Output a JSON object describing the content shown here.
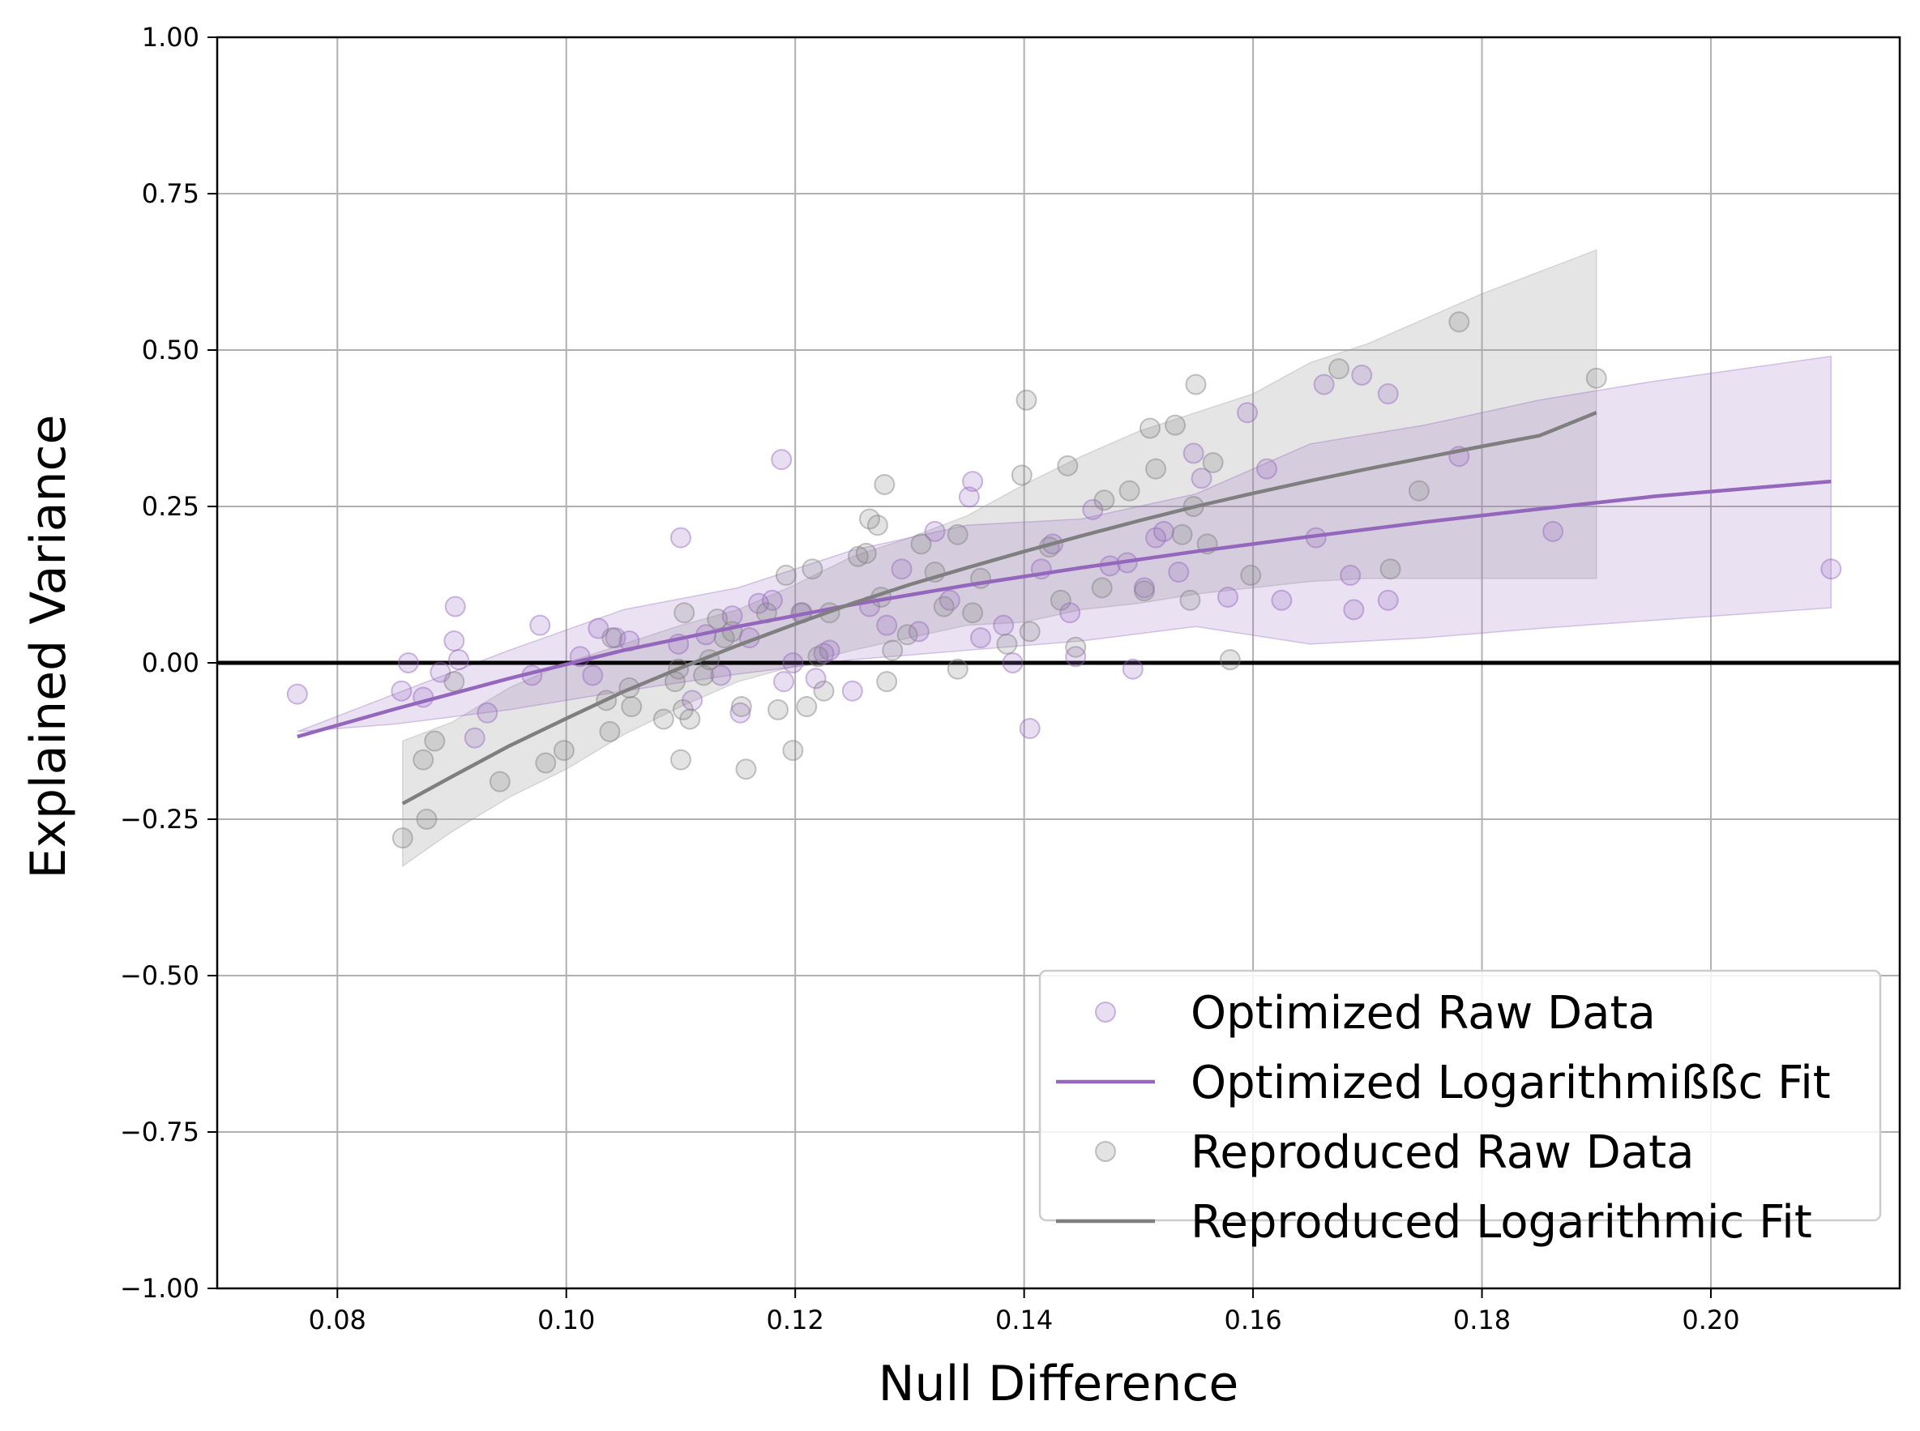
{
  "chart_data": {
    "type": "scatter",
    "title": "",
    "xlabel": "Null Difference",
    "ylabel": "Explained Variance",
    "xlim": [
      0.0695,
      0.2165
    ],
    "ylim": [
      -1.0,
      1.0
    ],
    "x_ticks": [
      0.08,
      0.1,
      0.12,
      0.14,
      0.16,
      0.18,
      0.2
    ],
    "x_tick_labels": [
      "0.08",
      "0.10",
      "0.12",
      "0.14",
      "0.16",
      "0.18",
      "0.20"
    ],
    "y_ticks": [
      -1.0,
      -0.75,
      -0.5,
      -0.25,
      0.0,
      0.25,
      0.5,
      0.75,
      1.0
    ],
    "y_tick_labels": [
      "−1.00",
      "−0.75",
      "−0.50",
      "−0.25",
      "0.00",
      "0.25",
      "0.50",
      "0.75",
      "1.00"
    ],
    "grid": true,
    "reference_line_y": 0.0,
    "legend_position": "lower right",
    "colors": {
      "optimized": "#9467bd",
      "reproduced": "#7f7f7f",
      "optimized_band": "#9467bd",
      "reproduced_band": "#a0a0a0",
      "grid": "#b0b0b0",
      "reference_line": "#000000"
    },
    "series": [
      {
        "name": "Optimized Raw Data",
        "kind": "scatter",
        "color": "#9467bd",
        "points": [
          [
            0.0765,
            -0.05
          ],
          [
            0.0856,
            -0.045
          ],
          [
            0.0862,
            0.0
          ],
          [
            0.0875,
            -0.055
          ],
          [
            0.089,
            -0.015
          ],
          [
            0.0903,
            0.09
          ],
          [
            0.0902,
            0.035
          ],
          [
            0.0906,
            0.005
          ],
          [
            0.092,
            -0.12
          ],
          [
            0.0931,
            -0.08
          ],
          [
            0.097,
            -0.02
          ],
          [
            0.0977,
            0.06
          ],
          [
            0.1012,
            0.01
          ],
          [
            0.1023,
            -0.02
          ],
          [
            0.1028,
            0.055
          ],
          [
            0.1043,
            0.04
          ],
          [
            0.1055,
            0.035
          ],
          [
            0.1098,
            0.03
          ],
          [
            0.11,
            0.2
          ],
          [
            0.111,
            -0.06
          ],
          [
            0.1122,
            0.045
          ],
          [
            0.1135,
            -0.02
          ],
          [
            0.1145,
            0.075
          ],
          [
            0.1152,
            -0.08
          ],
          [
            0.116,
            0.04
          ],
          [
            0.1168,
            0.095
          ],
          [
            0.118,
            0.1
          ],
          [
            0.1188,
            0.325
          ],
          [
            0.119,
            -0.03
          ],
          [
            0.1198,
            0.0
          ],
          [
            0.1206,
            0.08
          ],
          [
            0.1218,
            -0.025
          ],
          [
            0.1225,
            0.015
          ],
          [
            0.123,
            0.02
          ],
          [
            0.125,
            -0.045
          ],
          [
            0.1265,
            0.09
          ],
          [
            0.128,
            0.06
          ],
          [
            0.1293,
            0.15
          ],
          [
            0.1308,
            0.05
          ],
          [
            0.1322,
            0.21
          ],
          [
            0.1335,
            0.1
          ],
          [
            0.1352,
            0.265
          ],
          [
            0.1355,
            0.29
          ],
          [
            0.1362,
            0.04
          ],
          [
            0.1382,
            0.06
          ],
          [
            0.139,
            0.0
          ],
          [
            0.1405,
            -0.105
          ],
          [
            0.1415,
            0.15
          ],
          [
            0.1425,
            0.19
          ],
          [
            0.144,
            0.08
          ],
          [
            0.1445,
            0.01
          ],
          [
            0.146,
            0.245
          ],
          [
            0.1475,
            0.155
          ],
          [
            0.149,
            0.16
          ],
          [
            0.1495,
            -0.01
          ],
          [
            0.1505,
            0.12
          ],
          [
            0.1515,
            0.2
          ],
          [
            0.1522,
            0.21
          ],
          [
            0.1535,
            0.145
          ],
          [
            0.1548,
            0.335
          ],
          [
            0.1555,
            0.295
          ],
          [
            0.1578,
            0.105
          ],
          [
            0.1595,
            0.4
          ],
          [
            0.1612,
            0.31
          ],
          [
            0.1625,
            0.1
          ],
          [
            0.1655,
            0.2
          ],
          [
            0.1662,
            0.445
          ],
          [
            0.1685,
            0.14
          ],
          [
            0.1688,
            0.085
          ],
          [
            0.1695,
            0.46
          ],
          [
            0.1718,
            0.43
          ],
          [
            0.1718,
            0.1
          ],
          [
            0.178,
            0.33
          ],
          [
            0.1862,
            0.21
          ],
          [
            0.2105,
            0.15
          ]
        ]
      },
      {
        "name": "Optimized Logarithmißßc Fit",
        "kind": "line",
        "color": "#9467bd",
        "x": [
          0.0765,
          0.085,
          0.095,
          0.105,
          0.115,
          0.125,
          0.135,
          0.145,
          0.155,
          0.165,
          0.175,
          0.185,
          0.195,
          0.2105
        ],
        "y": [
          -0.118,
          -0.074,
          -0.025,
          0.02,
          0.058,
          0.093,
          0.124,
          0.152,
          0.178,
          0.202,
          0.225,
          0.246,
          0.266,
          0.29
        ],
        "band_lower": [
          -0.11,
          -0.098,
          -0.075,
          -0.045,
          -0.018,
          0.005,
          0.02,
          0.035,
          0.058,
          0.03,
          0.04,
          0.055,
          0.068,
          0.088
        ],
        "band_upper": [
          -0.11,
          -0.05,
          0.02,
          0.085,
          0.12,
          0.18,
          0.22,
          0.23,
          0.27,
          0.35,
          0.38,
          0.42,
          0.45,
          0.49
        ]
      },
      {
        "name": "Reproduced Raw Data",
        "kind": "scatter",
        "color": "#7f7f7f",
        "points": [
          [
            0.0857,
            -0.28
          ],
          [
            0.0875,
            -0.155
          ],
          [
            0.0878,
            -0.25
          ],
          [
            0.0885,
            -0.125
          ],
          [
            0.0902,
            -0.03
          ],
          [
            0.0942,
            -0.19
          ],
          [
            0.0982,
            -0.16
          ],
          [
            0.0998,
            -0.14
          ],
          [
            0.1035,
            -0.06
          ],
          [
            0.1038,
            -0.11
          ],
          [
            0.104,
            0.04
          ],
          [
            0.1055,
            -0.04
          ],
          [
            0.1057,
            -0.07
          ],
          [
            0.1085,
            -0.09
          ],
          [
            0.1095,
            -0.03
          ],
          [
            0.1098,
            -0.01
          ],
          [
            0.11,
            -0.155
          ],
          [
            0.1103,
            0.08
          ],
          [
            0.1102,
            -0.075
          ],
          [
            0.1108,
            -0.09
          ],
          [
            0.112,
            -0.02
          ],
          [
            0.1125,
            0.005
          ],
          [
            0.1132,
            0.07
          ],
          [
            0.1138,
            0.04
          ],
          [
            0.1145,
            0.05
          ],
          [
            0.1153,
            -0.07
          ],
          [
            0.1157,
            -0.17
          ],
          [
            0.1175,
            0.08
          ],
          [
            0.1185,
            -0.075
          ],
          [
            0.1192,
            0.14
          ],
          [
            0.1198,
            -0.14
          ],
          [
            0.1205,
            0.08
          ],
          [
            0.121,
            -0.07
          ],
          [
            0.1215,
            0.15
          ],
          [
            0.122,
            0.01
          ],
          [
            0.1225,
            -0.045
          ],
          [
            0.123,
            0.08
          ],
          [
            0.1255,
            0.17
          ],
          [
            0.1262,
            0.175
          ],
          [
            0.1265,
            0.23
          ],
          [
            0.1272,
            0.22
          ],
          [
            0.1275,
            0.105
          ],
          [
            0.1278,
            0.285
          ],
          [
            0.128,
            -0.03
          ],
          [
            0.1285,
            0.02
          ],
          [
            0.1298,
            0.045
          ],
          [
            0.131,
            0.19
          ],
          [
            0.1322,
            0.145
          ],
          [
            0.133,
            0.09
          ],
          [
            0.1342,
            0.205
          ],
          [
            0.1342,
            -0.01
          ],
          [
            0.1355,
            0.08
          ],
          [
            0.1362,
            0.135
          ],
          [
            0.1385,
            0.03
          ],
          [
            0.1398,
            0.3
          ],
          [
            0.1402,
            0.42
          ],
          [
            0.1405,
            0.05
          ],
          [
            0.1422,
            0.185
          ],
          [
            0.1432,
            0.1
          ],
          [
            0.1438,
            0.315
          ],
          [
            0.1445,
            0.025
          ],
          [
            0.1468,
            0.12
          ],
          [
            0.147,
            0.26
          ],
          [
            0.1492,
            0.275
          ],
          [
            0.1505,
            0.115
          ],
          [
            0.151,
            0.375
          ],
          [
            0.1515,
            0.31
          ],
          [
            0.1532,
            0.38
          ],
          [
            0.1538,
            0.205
          ],
          [
            0.1545,
            0.1
          ],
          [
            0.1548,
            0.25
          ],
          [
            0.155,
            0.445
          ],
          [
            0.156,
            0.19
          ],
          [
            0.1565,
            0.32
          ],
          [
            0.158,
            0.005
          ],
          [
            0.1598,
            0.14
          ],
          [
            0.1675,
            0.47
          ],
          [
            0.172,
            0.15
          ],
          [
            0.1745,
            0.275
          ],
          [
            0.178,
            0.545
          ],
          [
            0.19,
            0.455
          ]
        ]
      },
      {
        "name": "Reproduced Logarithmic Fit",
        "kind": "line",
        "color": "#7f7f7f",
        "x": [
          0.0857,
          0.09,
          0.095,
          0.1,
          0.105,
          0.11,
          0.115,
          0.12,
          0.125,
          0.13,
          0.135,
          0.14,
          0.145,
          0.15,
          0.155,
          0.16,
          0.165,
          0.17,
          0.175,
          0.18,
          0.185,
          0.19
        ],
        "y": [
          -0.225,
          -0.182,
          -0.133,
          -0.089,
          -0.046,
          -0.008,
          0.028,
          0.062,
          0.095,
          0.125,
          0.152,
          0.178,
          0.203,
          0.227,
          0.25,
          0.271,
          0.291,
          0.31,
          0.328,
          0.346,
          0.363,
          0.4
        ],
        "band_lower": [
          -0.325,
          -0.27,
          -0.215,
          -0.17,
          -0.115,
          -0.07,
          -0.03,
          -0.005,
          0.02,
          0.04,
          0.06,
          0.065,
          0.085,
          0.095,
          0.11,
          0.12,
          0.13,
          0.135,
          0.135,
          0.135,
          0.135,
          0.135
        ],
        "band_upper": [
          -0.125,
          -0.095,
          -0.04,
          0.0,
          0.03,
          0.06,
          0.085,
          0.125,
          0.17,
          0.2,
          0.235,
          0.285,
          0.33,
          0.37,
          0.4,
          0.43,
          0.48,
          0.51,
          0.55,
          0.59,
          0.625,
          0.66
        ]
      }
    ],
    "legend": [
      {
        "label": "Optimized Raw Data",
        "marker": "circle",
        "color": "#9467bd"
      },
      {
        "label": "Optimized Logarithmißßc Fit",
        "marker": "line",
        "color": "#9467bd"
      },
      {
        "label": "Reproduced Raw Data",
        "marker": "circle",
        "color": "#7f7f7f"
      },
      {
        "label": "Reproduced Logarithmic Fit",
        "marker": "line",
        "color": "#7f7f7f"
      }
    ]
  }
}
